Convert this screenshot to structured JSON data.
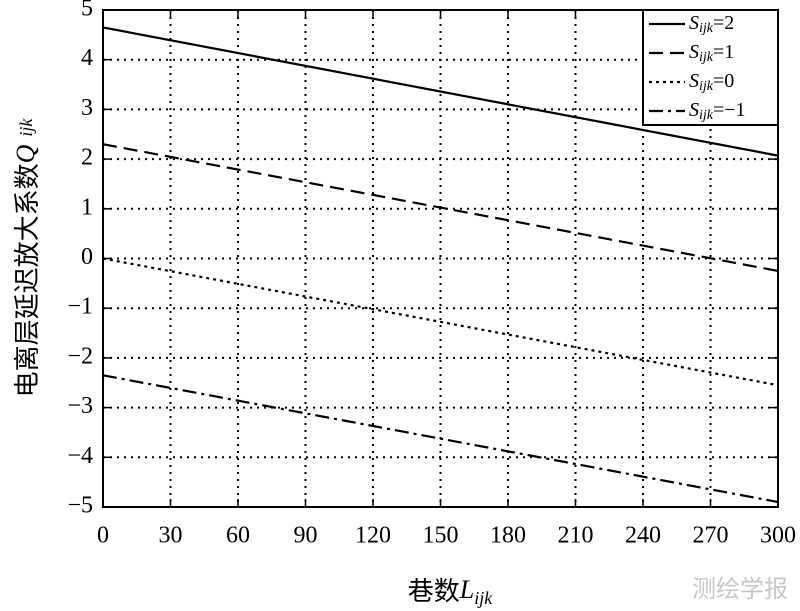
{
  "chart_data": {
    "type": "line",
    "xlabel": "巷数",
    "xlabel_var": "L",
    "xlabel_sub": "ijk",
    "ylabel": "电离层延迟放大系数",
    "ylabel_var": "Q",
    "ylabel_sub": "ijk",
    "x": [
      0,
      300
    ],
    "series": [
      {
        "name": "S",
        "name_sub": "ijk",
        "name_suffix": "=2",
        "color": "#000000",
        "style": "solid",
        "values": [
          4.65,
          2.07
        ]
      },
      {
        "name": "S",
        "name_sub": "ijk",
        "name_suffix": "=1",
        "color": "#000000",
        "style": "dashed",
        "values": [
          2.3,
          -0.25
        ]
      },
      {
        "name": "S",
        "name_sub": "ijk",
        "name_suffix": "=0",
        "color": "#000000",
        "style": "dotted",
        "values": [
          0,
          -2.55
        ]
      },
      {
        "name": "S",
        "name_sub": "ijk",
        "name_suffix": "=−1",
        "color": "#000000",
        "style": "dashdot",
        "values": [
          -2.35,
          -4.9
        ]
      }
    ],
    "xlim": [
      0,
      300
    ],
    "xticks": [
      0,
      30,
      60,
      90,
      120,
      150,
      180,
      210,
      240,
      270,
      300
    ],
    "ylim": [
      -5,
      5
    ],
    "yticks": [
      {
        "value": -5,
        "label": "−5"
      },
      {
        "value": -4,
        "label": "−4"
      },
      {
        "value": -3,
        "label": "−3"
      },
      {
        "value": -2,
        "label": "−2"
      },
      {
        "value": -1,
        "label": "−1"
      },
      0,
      1,
      2,
      3,
      4,
      5
    ],
    "grid": true,
    "legend": "upper right",
    "watermark": "测绘学报"
  }
}
